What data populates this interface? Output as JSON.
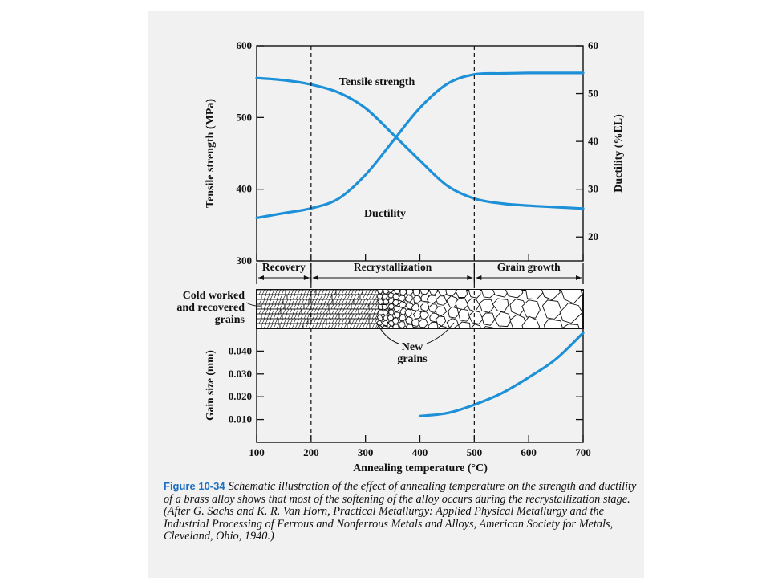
{
  "chart_data": [
    {
      "type": "line",
      "title": "",
      "xlabel": "Annealing temperature (°C)",
      "ylabel_left": "Tensile strength (MPa)",
      "ylabel_right": "Ductility (%EL)",
      "xlim": [
        100,
        700
      ],
      "ylim_left": [
        300,
        600
      ],
      "ylim_right": [
        15,
        60
      ],
      "x_ticks": [
        "100",
        "200",
        "300",
        "400",
        "500",
        "600",
        "700"
      ],
      "y_left_ticks": [
        "300",
        "400",
        "500",
        "600"
      ],
      "y_right_ticks": [
        "20",
        "30",
        "40",
        "50",
        "60"
      ],
      "color": "#1e90d8",
      "series": [
        {
          "name": "Tensile strength",
          "axis": "left",
          "x": [
            100,
            150,
            200,
            250,
            300,
            350,
            400,
            450,
            500,
            550,
            600,
            650,
            700
          ],
          "y": [
            555,
            552,
            546,
            535,
            513,
            477,
            440,
            405,
            387,
            380,
            377,
            375,
            373
          ]
        },
        {
          "name": "Ductility",
          "axis": "right",
          "x": [
            100,
            150,
            200,
            250,
            300,
            350,
            400,
            450,
            500,
            550,
            600,
            650,
            700
          ],
          "y": [
            24,
            25,
            26,
            28,
            33,
            40,
            47,
            52,
            54,
            54.2,
            54.3,
            54.3,
            54.3
          ]
        }
      ],
      "stage_boundaries_x": [
        200,
        500
      ],
      "stages": [
        "Recovery",
        "Recrystallization",
        "Grain growth"
      ]
    },
    {
      "type": "line",
      "xlabel": "Annealing temperature (°C)",
      "ylabel": "Gain size (mm)",
      "xlim": [
        100,
        700
      ],
      "ylim": [
        0.0,
        0.05
      ],
      "y_ticks": [
        "0.040",
        "0.030",
        "0.020",
        "0.010"
      ],
      "color": "#1e90d8",
      "series": [
        {
          "name": "",
          "x": [
            400,
            450,
            500,
            550,
            600,
            650,
            700
          ],
          "y": [
            0.0115,
            0.0128,
            0.0165,
            0.0215,
            0.0285,
            0.0365,
            0.048
          ]
        }
      ]
    }
  ],
  "annotations": {
    "cold_worked_line1": "Cold worked",
    "cold_worked_line2": "and recovered",
    "cold_worked_line3": "grains",
    "new_grains_line1": "New",
    "new_grains_line2": "grains"
  },
  "caption": {
    "figure_label": "Figure 10-34",
    "text": "Schematic illustration of the effect of annealing temperature on the strength and ductility of a brass alloy shows that most of the softening of the alloy occurs during the recrystallization stage. (After G. Sachs and K. R. Van Horn, Practical Metallurgy: Applied Physical Metallurgy and the Industrial Processing of Ferrous and Nonferrous Metals and Alloys, American Society for Metals, Cleveland, Ohio, 1940.)"
  }
}
